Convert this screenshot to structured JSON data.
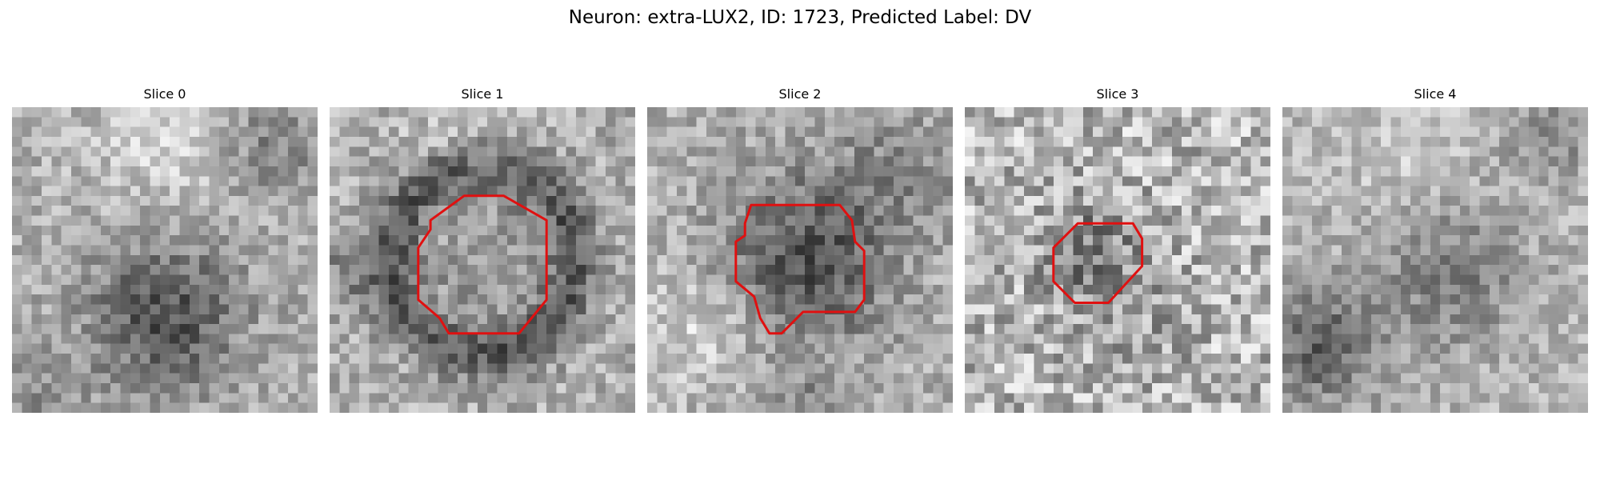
{
  "figure": {
    "title": "Neuron: extra-LUX2, ID: 1723, Predicted Label: DV"
  },
  "slices": [
    {
      "title": "Slice 0",
      "pattern": "dark blob lower center, bright upper band",
      "has_outline": false
    },
    {
      "title": "Slice 1",
      "pattern": "dark ring around mid-gray center",
      "has_outline": true,
      "outline_color": "#e01010"
    },
    {
      "title": "Slice 2",
      "pattern": "dark center body, bright lower-left",
      "has_outline": true,
      "outline_color": "#e01010"
    },
    {
      "title": "Slice 3",
      "pattern": "bright noisy field with small dark center",
      "has_outline": true,
      "outline_color": "#e01010"
    },
    {
      "title": "Slice 4",
      "pattern": "bright upper field, dark lower-left",
      "has_outline": false
    }
  ],
  "colormap": "gray"
}
